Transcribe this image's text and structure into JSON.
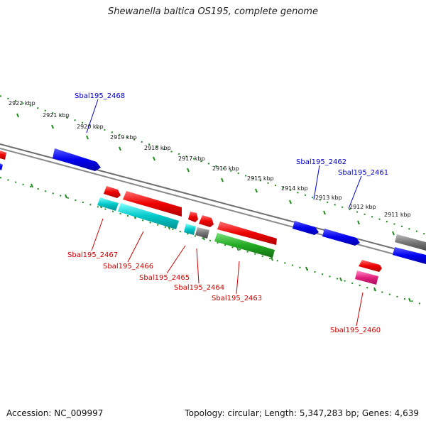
{
  "title": "Shewanella baltica OS195, complete genome",
  "accession": "Accession: NC_009997",
  "topology": "Topology: circular; Length: 5,347,283 bp; Genes: 4,639",
  "kbp_labels": [
    "2922 kbp",
    "2921 kbp",
    "2920 kbp",
    "2919 kbp",
    "2918 kbp",
    "2917 kbp",
    "2916 kbp",
    "2915 kbp",
    "2914 kbp",
    "2913 kbp",
    "2912 kbp",
    "2911 kbp"
  ],
  "gene_labels": [
    {
      "text": "Sbal195_2468",
      "color": "#0000cc"
    },
    {
      "text": "Sbal195_2462",
      "color": "#0000cc"
    },
    {
      "text": "Sbal195_2461",
      "color": "#0000cc"
    },
    {
      "text": "Sbal195_2467",
      "color": "#cc0000"
    },
    {
      "text": "Sbal195_2466",
      "color": "#cc0000"
    },
    {
      "text": "Sbal195_2465",
      "color": "#cc0000"
    },
    {
      "text": "Sbal195_2464",
      "color": "#cc0000"
    },
    {
      "text": "Sbal195_2463",
      "color": "#cc0000"
    },
    {
      "text": "Sbal195_2460",
      "color": "#cc0000"
    }
  ],
  "colors": {
    "backbone": "#777777",
    "tick": "#1f8a1f",
    "forward_gene": "#0000ee",
    "reverse_gene": "#ee0000",
    "cyan_gene": "#00c8c8",
    "green_gene": "#22aa22",
    "gray_gene": "#777777",
    "pink_gene": "#e0207e"
  }
}
